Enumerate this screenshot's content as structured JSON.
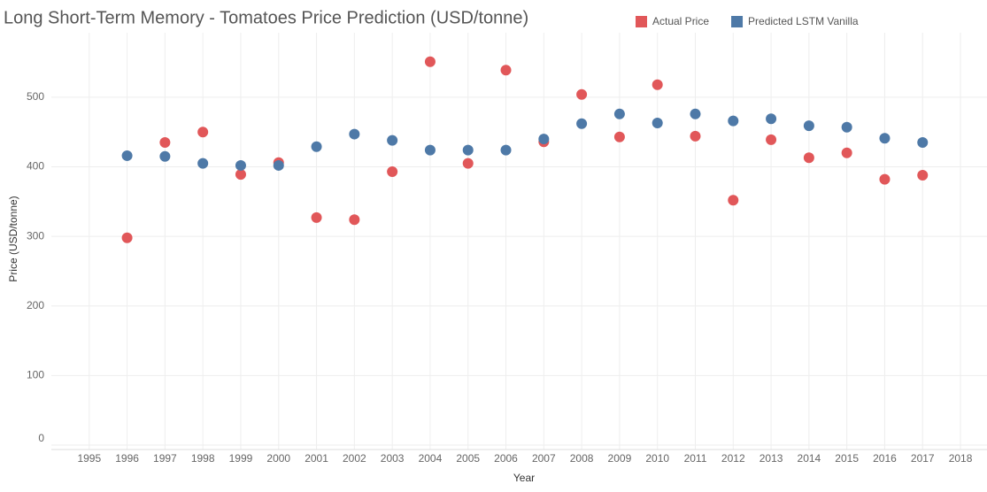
{
  "chart_data": {
    "type": "scatter",
    "title": "Long Short-Term Memory - Tomatoes Price Prediction (USD/tonne)",
    "x_label": "Year",
    "y_label": "Price (USD/tonne)",
    "x": [
      1996,
      1997,
      1998,
      1999,
      2000,
      2001,
      2002,
      2003,
      2004,
      2005,
      2006,
      2007,
      2008,
      2009,
      2010,
      2011,
      2012,
      2013,
      2014,
      2015,
      2016,
      2017
    ],
    "series": [
      {
        "name": "Actual Price",
        "color": "#e15759",
        "values": [
          298,
          435,
          450,
          389,
          406,
          327,
          324,
          393,
          551,
          405,
          539,
          436,
          504,
          443,
          518,
          444,
          352,
          439,
          413,
          420,
          382,
          388
        ]
      },
      {
        "name": "Predicted LSTM Vanilla",
        "color": "#4e79a7",
        "values": [
          416,
          415,
          405,
          402,
          402,
          429,
          447,
          438,
          424,
          424,
          424,
          440,
          462,
          476,
          463,
          476,
          466,
          469,
          459,
          457,
          441,
          435
        ]
      }
    ],
    "xlim": [
      1994,
      2018.7
    ],
    "ylim": [
      0,
      580
    ],
    "xticks": [
      1995,
      1996,
      1997,
      1998,
      1999,
      2000,
      2001,
      2002,
      2003,
      2004,
      2005,
      2006,
      2007,
      2008,
      2009,
      2010,
      2011,
      2012,
      2013,
      2014,
      2015,
      2016,
      2017,
      2018
    ],
    "yticks": [
      0,
      100,
      200,
      300,
      400,
      500
    ],
    "grid": true
  }
}
